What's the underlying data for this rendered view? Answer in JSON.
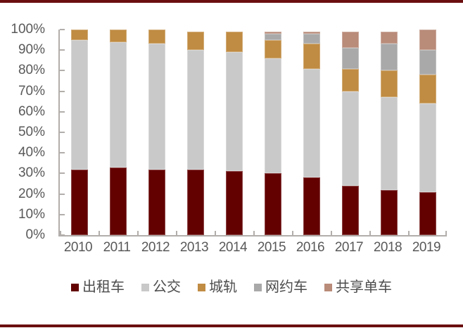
{
  "page": {
    "top_rule_color": "#6b0e0f",
    "bottom_rule_color": "#6b0e0f",
    "background": "#ffffff",
    "axis_color": "#b2aeab",
    "axis_text_color": "#595959",
    "legend_text_color": "#4d4d4d"
  },
  "chart_data": {
    "type": "bar",
    "subtype": "stacked-100-percent",
    "title": "",
    "xlabel": "",
    "ylabel": "",
    "grid": false,
    "legend_position": "bottom",
    "ylim": [
      0,
      100
    ],
    "y_ticks": [
      "100%",
      "90%",
      "80%",
      "70%",
      "60%",
      "50%",
      "40%",
      "30%",
      "20%",
      "10%",
      "0%"
    ],
    "categories": [
      "2010",
      "2011",
      "2012",
      "2013",
      "2014",
      "2015",
      "2016",
      "2017",
      "2018",
      "2019"
    ],
    "series": [
      {
        "key": "taxi",
        "name": "出租车",
        "color": "#630000",
        "values": [
          32,
          33,
          32,
          32,
          31,
          30,
          28,
          24,
          22,
          21
        ]
      },
      {
        "key": "bus",
        "name": "公交",
        "color": "#c9c9c9",
        "values": [
          63,
          61,
          61,
          58,
          58,
          56,
          53,
          46,
          45,
          43
        ]
      },
      {
        "key": "metro",
        "name": "城轨",
        "color": "#c08c43",
        "values": [
          5,
          6,
          7,
          9,
          10,
          9,
          12,
          11,
          13,
          14
        ]
      },
      {
        "key": "ridehailing",
        "name": "网约车",
        "color": "#a9a9a9",
        "values": [
          0,
          0,
          0,
          0,
          0,
          3,
          5,
          10,
          13,
          12
        ]
      },
      {
        "key": "sharedbike",
        "name": "共享单车",
        "color": "#b98b79",
        "values": [
          0,
          0,
          0,
          0,
          0,
          1,
          1,
          8,
          6,
          10
        ]
      }
    ]
  }
}
